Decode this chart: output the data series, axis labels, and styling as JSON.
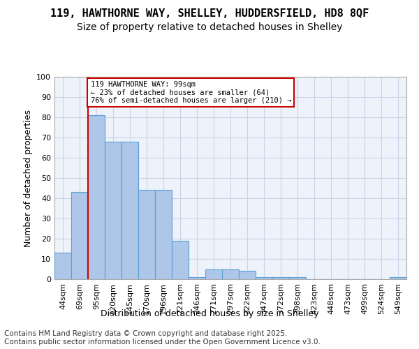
{
  "title_line1": "119, HAWTHORNE WAY, SHELLEY, HUDDERSFIELD, HD8 8QF",
  "title_line2": "Size of property relative to detached houses in Shelley",
  "xlabel": "Distribution of detached houses by size in Shelley",
  "ylabel": "Number of detached properties",
  "categories": [
    "44sqm",
    "69sqm",
    "95sqm",
    "120sqm",
    "145sqm",
    "170sqm",
    "196sqm",
    "221sqm",
    "246sqm",
    "271sqm",
    "297sqm",
    "322sqm",
    "347sqm",
    "372sqm",
    "398sqm",
    "423sqm",
    "448sqm",
    "473sqm",
    "499sqm",
    "524sqm",
    "549sqm"
  ],
  "values": [
    13,
    43,
    81,
    68,
    68,
    44,
    44,
    19,
    1,
    5,
    5,
    4,
    1,
    1,
    1,
    0,
    0,
    0,
    0,
    0,
    1
  ],
  "bar_color": "#aec6e8",
  "bar_edge_color": "#5a9fd4",
  "annotation_box_text": "119 HAWTHORNE WAY: 99sqm\n← 23% of detached houses are smaller (64)\n76% of semi-detached houses are larger (210) →",
  "annotation_box_color": "#ffffff",
  "annotation_box_edge_color": "#cc0000",
  "vline_color": "#cc0000",
  "ylim": [
    0,
    100
  ],
  "yticks": [
    0,
    10,
    20,
    30,
    40,
    50,
    60,
    70,
    80,
    90,
    100
  ],
  "grid_color": "#c8d4e8",
  "background_color": "#eef2fa",
  "footer_text": "Contains HM Land Registry data © Crown copyright and database right 2025.\nContains public sector information licensed under the Open Government Licence v3.0.",
  "title_fontsize": 11,
  "subtitle_fontsize": 10,
  "axis_label_fontsize": 9,
  "tick_fontsize": 8,
  "footer_fontsize": 7.5
}
